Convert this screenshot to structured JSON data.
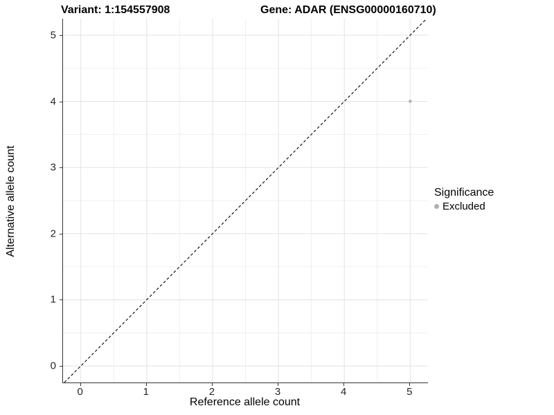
{
  "titles": {
    "left": "Variant: 1:154557908",
    "right": "Gene: ADAR (ENSG00000160710)"
  },
  "colors": {
    "point": "#b3b3b3",
    "legend_key": "#b0b0b0",
    "grid_major": "#e2e2e2",
    "grid_minor": "#efefef",
    "axis_line": "#333333",
    "reference_line": "#000000"
  },
  "chart_data": {
    "type": "scatter",
    "title": "Variant: 1:154557908   Gene: ADAR (ENSG00000160710)",
    "xlabel": "Reference allele count",
    "ylabel": "Alternative allele count",
    "xlim": [
      -0.27,
      5.27
    ],
    "ylim": [
      -0.25,
      5.25
    ],
    "xticks": [
      0,
      1,
      2,
      3,
      4,
      5
    ],
    "yticks": [
      0,
      1,
      2,
      3,
      4,
      5
    ],
    "minor_grid_step": 0.5,
    "grid": true,
    "series": [
      {
        "name": "Excluded",
        "color": "#b3b3b3",
        "points": [
          {
            "x": 5,
            "y": 4
          }
        ]
      }
    ],
    "reference_line": {
      "type": "abline",
      "slope": 1,
      "intercept": 0,
      "style": "dashed",
      "color": "#000000"
    },
    "legend": {
      "title": "Significance",
      "position": "right",
      "entries": [
        {
          "label": "Excluded",
          "color": "#b0b0b0"
        }
      ]
    }
  }
}
